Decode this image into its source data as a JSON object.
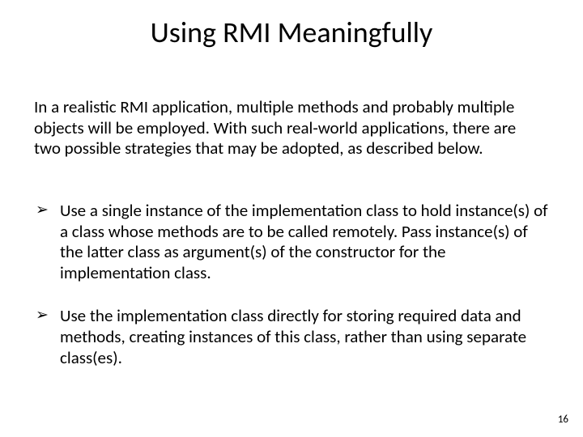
{
  "title_fontsize": 36,
  "body_fontsize": 21,
  "pagenum_fontsize": 13,
  "text_color": "#000000",
  "background_color": "#ffffff",
  "font_family": "Calibri",
  "bullet_marker": "➢",
  "title": "Using RMI Meaningfully",
  "intro": "In a realistic RMI application, multiple methods and probably multiple objects will be employed. With such real-world applications, there are two possible strategies that may be adopted, as described below.",
  "bullets": [
    "Use a single instance of the implementation class to hold instance(s) of a class whose methods are to be called remotely. Pass instance(s) of the latter class as argument(s) of the constructor for the implementation class.",
    "Use the implementation class directly for storing required data and methods, creating instances of this class, rather than using separate class(es)."
  ],
  "page_number": "16"
}
